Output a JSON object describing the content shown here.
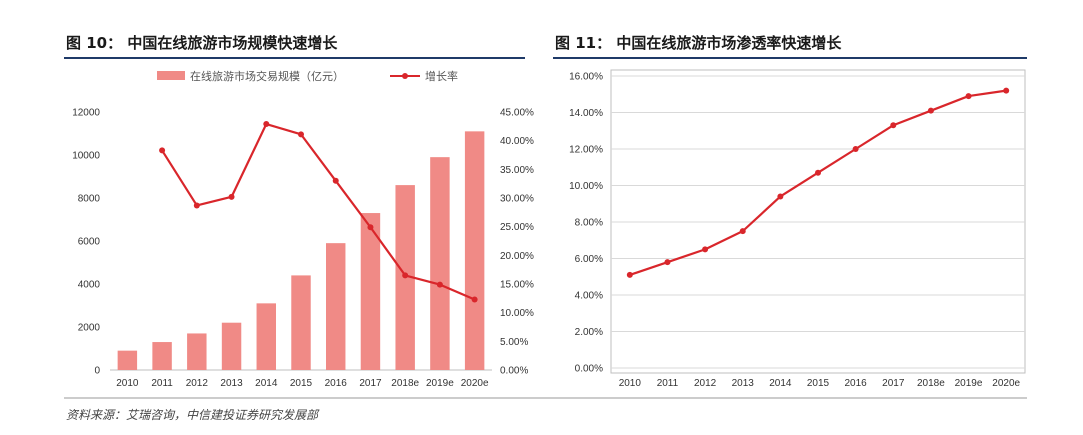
{
  "source": "资料来源：艾瑞咨询，中信建投证券研究发展部",
  "colors": {
    "bar": "#f08a86",
    "line": "#d9262b",
    "rule_dark": "#1f3a68"
  },
  "chart_data": [
    {
      "type": "bar",
      "title": "图 10：  中国在线旅游市场规模快速增长",
      "categories": [
        "2010",
        "2011",
        "2012",
        "2013",
        "2014",
        "2015",
        "2016",
        "2017",
        "2018e",
        "2019e",
        "2020e"
      ],
      "series": [
        {
          "name": "在线旅游市场交易规模（亿元）",
          "type": "bar",
          "axis": "left",
          "values": [
            900,
            1300,
            1700,
            2200,
            3100,
            4400,
            5900,
            7300,
            8600,
            9900,
            11100
          ]
        },
        {
          "name": "增长率",
          "type": "line",
          "axis": "right",
          "values": [
            null,
            38.3,
            28.7,
            30.2,
            42.9,
            41.1,
            33.0,
            24.9,
            16.5,
            14.9,
            12.3
          ]
        }
      ],
      "ylim_left": [
        0,
        12000
      ],
      "yticks_left": [
        "0",
        "2000",
        "4000",
        "6000",
        "8000",
        "10000",
        "12000"
      ],
      "ylim_right": [
        0,
        45
      ],
      "yticks_right": [
        "0.00%",
        "5.00%",
        "10.00%",
        "15.00%",
        "20.00%",
        "25.00%",
        "30.00%",
        "35.00%",
        "40.00%",
        "45.00%"
      ],
      "legend_position": "top",
      "grid": false
    },
    {
      "type": "line",
      "title": "图 11：  中国在线旅游市场渗透率快速增长",
      "categories": [
        "2010",
        "2011",
        "2012",
        "2013",
        "2014",
        "2015",
        "2016",
        "2017",
        "2018e",
        "2019e",
        "2020e"
      ],
      "series": [
        {
          "values": [
            5.1,
            5.8,
            6.5,
            7.5,
            9.4,
            10.7,
            12.0,
            13.3,
            14.1,
            14.9,
            15.2
          ]
        }
      ],
      "ylim": [
        0,
        16
      ],
      "yticks": [
        "0.00%",
        "2.00%",
        "4.00%",
        "6.00%",
        "8.00%",
        "10.00%",
        "12.00%",
        "14.00%",
        "16.00%"
      ],
      "grid": true
    }
  ]
}
